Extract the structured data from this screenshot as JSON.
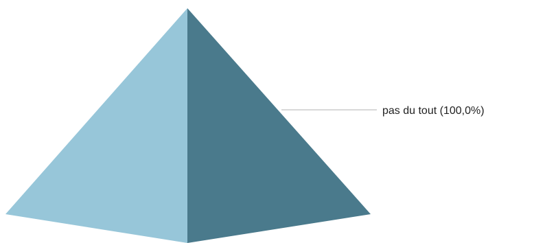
{
  "chart_data": {
    "type": "pyramid",
    "title": "",
    "series": [
      {
        "name": "pas du tout",
        "value": 100.0,
        "label": "pas du tout (100,0%)"
      }
    ],
    "colors": {
      "face_light": "#97c6d9",
      "face_dark": "#4a7a8c",
      "leader_line": "#b0b0b0",
      "label_text": "#222222"
    }
  }
}
